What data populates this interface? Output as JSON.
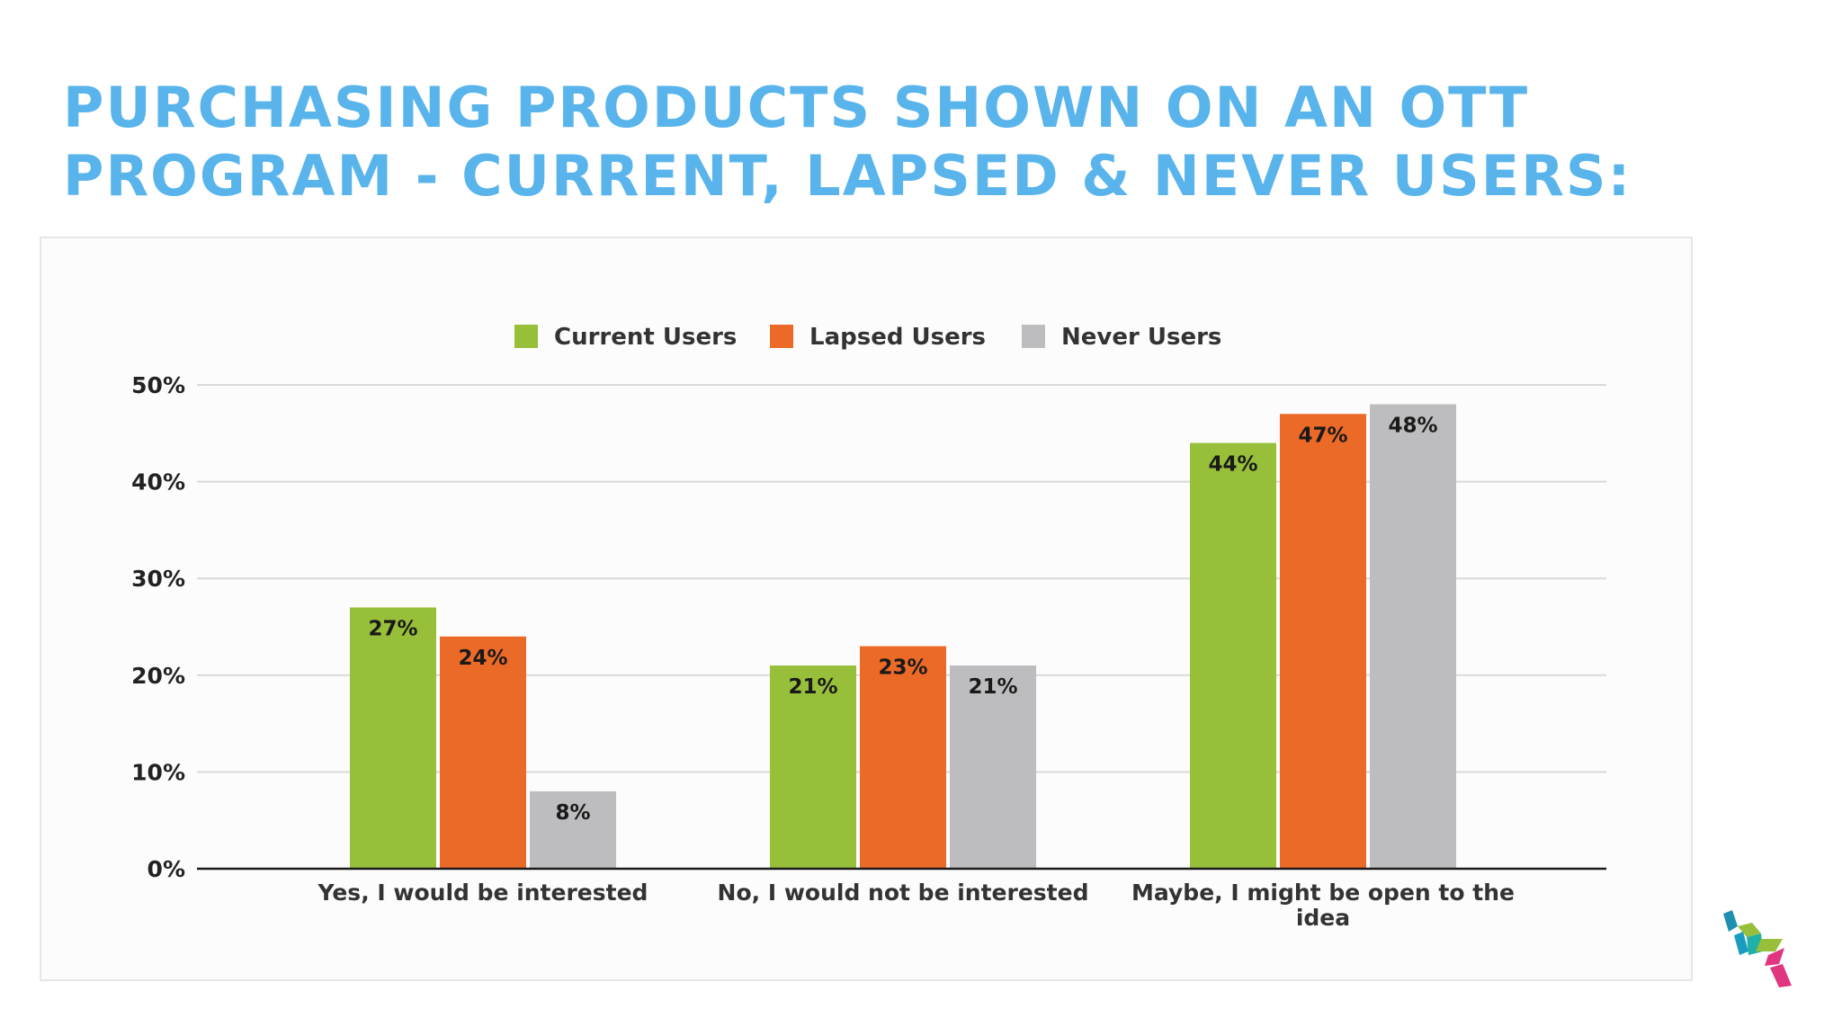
{
  "title_lines": [
    "PURCHASING PRODUCTS SHOWN ON AN OTT",
    "PROGRAM - CURRENT, LAPSED & NEVER USERS:"
  ],
  "colors": {
    "title": "#5ab4ec",
    "current": "#97bf3a",
    "lapsed": "#ec6a28",
    "never": "#bdbcbe",
    "grid": "#d9d9d9",
    "axis": "#1a1a1a",
    "text": "#222222"
  },
  "chart_data": {
    "type": "bar",
    "categories": [
      "Yes, I would be interested",
      "No, I would not be interested",
      "Maybe, I might be open to the idea"
    ],
    "series": [
      {
        "name": "Current Users",
        "values": [
          27,
          21,
          44
        ]
      },
      {
        "name": "Lapsed Users",
        "values": [
          24,
          23,
          47
        ]
      },
      {
        "name": "Never Users",
        "values": [
          8,
          21,
          48
        ]
      }
    ],
    "data_labels": [
      [
        "27%",
        "21%",
        "44%"
      ],
      [
        "24%",
        "23%",
        "47%"
      ],
      [
        "8%",
        "21%",
        "48%"
      ]
    ],
    "yticks": [
      "0%",
      "10%",
      "20%",
      "30%",
      "40%",
      "50%"
    ],
    "ylim": [
      0,
      50
    ],
    "grid": true,
    "legend_position": "top-center"
  }
}
